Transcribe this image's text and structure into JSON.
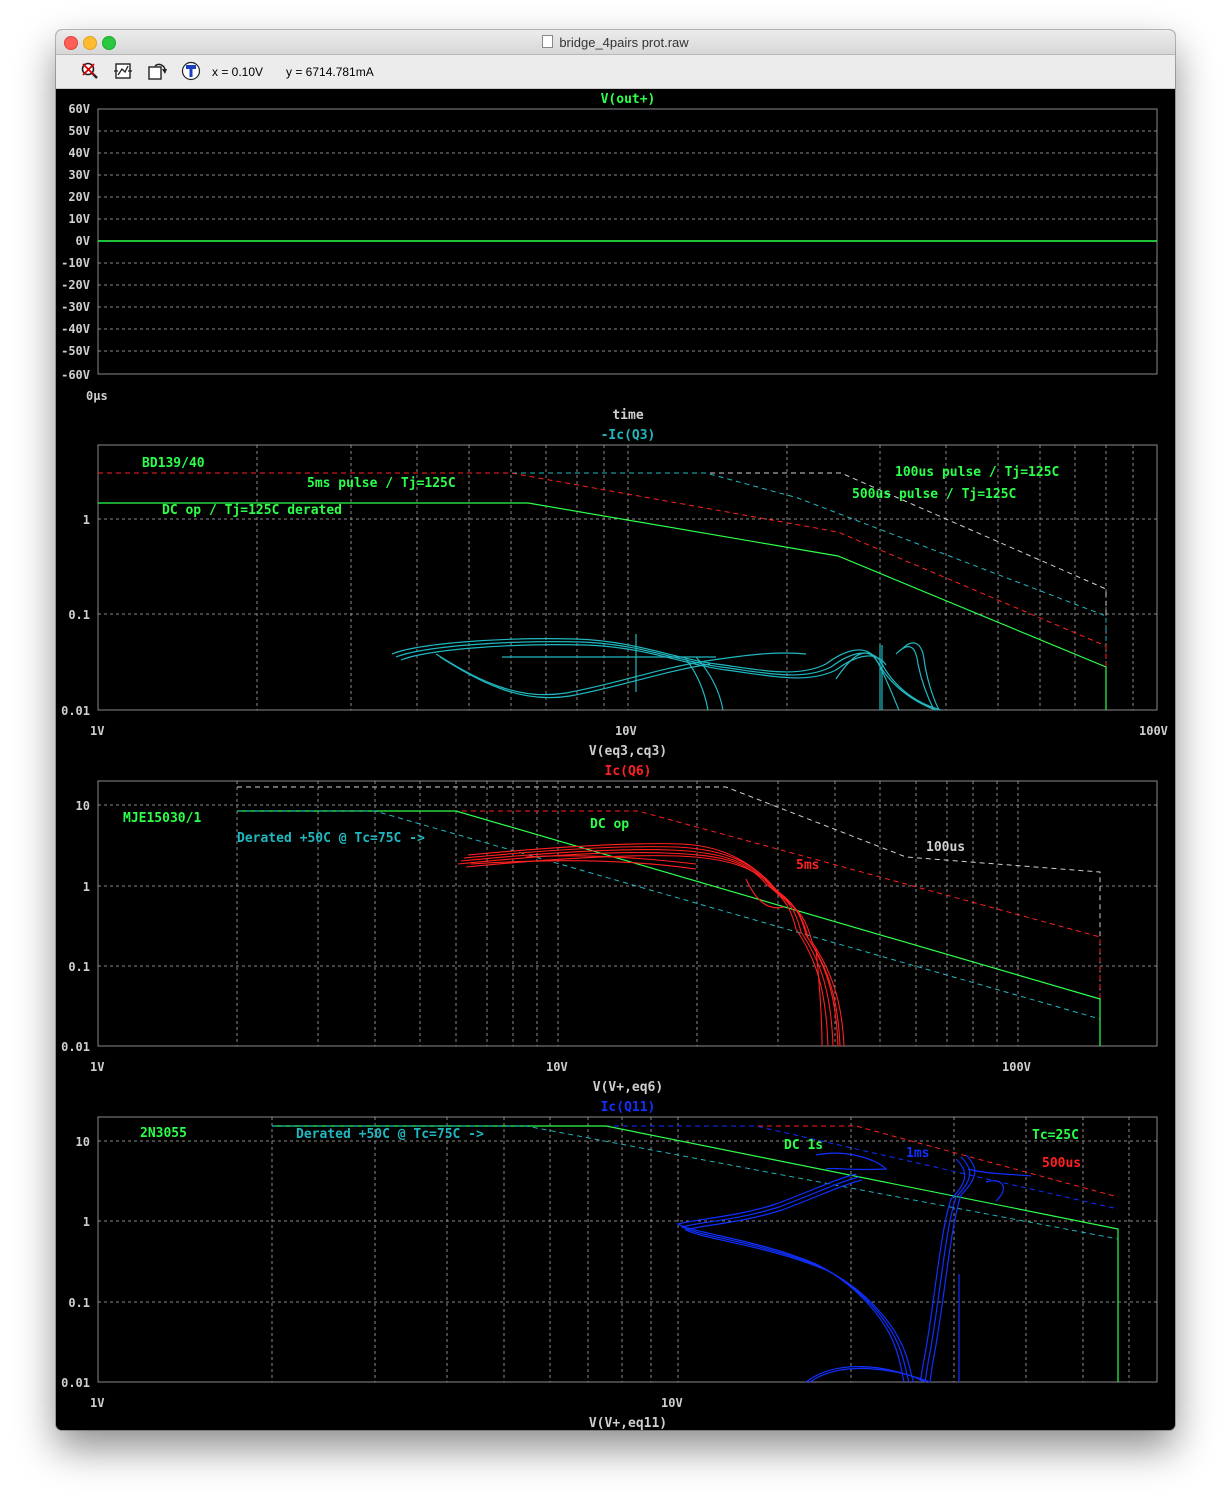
{
  "window": {
    "title": "bridge_4pairs prot.raw"
  },
  "toolbar": {
    "icons": [
      "zoom-cancel-icon",
      "autorange-icon",
      "undo-zoom-icon",
      "probe-icon"
    ],
    "x_readout": "x = 0.10V",
    "y_readout": "y = 6714.781mA"
  },
  "colors": {
    "green": "#2cff4a",
    "cyan": "#20b8c0",
    "red": "#ff2020",
    "blue": "#1030ff",
    "white": "#d0d0d0"
  },
  "panels": [
    {
      "trace": "V(out+)",
      "trace_color": "#2cff4a",
      "y_ticks": [
        "60V",
        "50V",
        "40V",
        "30V",
        "20V",
        "10V",
        "0V",
        "-10V",
        "-20V",
        "-30V",
        "-40V",
        "-50V",
        "-60V"
      ],
      "x_tick": "0µs",
      "x_label": "time"
    },
    {
      "trace": "-Ic(Q3)",
      "trace_color": "#20b8c0",
      "y_ticks": [
        "1",
        "0.1",
        "0.01"
      ],
      "x_ticks": [
        "1V",
        "10V",
        "100V"
      ],
      "x_label": "V(eq3,cq3)",
      "annotations": [
        "BD139/40",
        "5ms pulse / Tj=125C",
        "DC op / Tj=125C derated",
        "100us pulse / Tj=125C",
        "500us pulse / Tj=125C"
      ]
    },
    {
      "trace": "Ic(Q6)",
      "trace_color": "#ff2020",
      "y_ticks": [
        "10",
        "1",
        "0.1",
        "0.01"
      ],
      "x_ticks": [
        "1V",
        "10V",
        "100V"
      ],
      "x_label": "V(V+,eq6)",
      "annotations": [
        "MJE15030/1",
        "Derated +50C @ Tc=75C ->",
        "DC op",
        "5ms",
        "100us"
      ]
    },
    {
      "trace": "Ic(Q11)",
      "trace_color": "#1030ff",
      "y_ticks": [
        "10",
        "1",
        "0.1",
        "0.01"
      ],
      "x_ticks": [
        "1V",
        "10V"
      ],
      "x_label": "V(V+,eq11)",
      "annotations": [
        "2N3055",
        "Derated +50C @ Tc=75C ->",
        "DC 1s",
        "1ms",
        "Tc=25C",
        "500us"
      ]
    }
  ],
  "chart_data": [
    {
      "type": "line",
      "title": "V(out+)",
      "xlabel": "time",
      "ylabel": "",
      "ylim": [
        -60,
        60
      ],
      "series": [
        {
          "name": "V(out+)",
          "x": [
            0,
            1
          ],
          "values": [
            0,
            0
          ]
        }
      ]
    },
    {
      "type": "line",
      "title": "-Ic(Q3)",
      "xlabel": "V(eq3,cq3)",
      "ylabel": "",
      "log_x": true,
      "log_y": true,
      "xlim": [
        1,
        100
      ],
      "ylim": [
        0.01,
        3
      ],
      "series": [
        {
          "name": "DC op / Tj=125C derated",
          "x": [
            1,
            6,
            24,
            80,
            80
          ],
          "values": [
            1.5,
            1.5,
            0.4,
            0.026,
            0.01
          ]
        },
        {
          "name": "5ms pulse / Tj=125C",
          "x": [
            1,
            6,
            24,
            80
          ],
          "values": [
            3,
            3,
            0.7,
            0.05
          ]
        },
        {
          "name": "500us pulse / Tj=125C",
          "x": [
            1,
            14,
            30,
            80
          ],
          "values": [
            3,
            3,
            1,
            0.1
          ]
        },
        {
          "name": "100us pulse / Tj=125C",
          "x": [
            1,
            24,
            80
          ],
          "values": [
            3,
            3,
            0.2
          ]
        },
        {
          "name": "-Ic(Q3)",
          "x": [
            3.6,
            5,
            7,
            10,
            14,
            22,
            26,
            28,
            30,
            32,
            34,
            38
          ],
          "values": [
            0.04,
            0.05,
            0.055,
            0.045,
            0.035,
            0.035,
            0.02,
            0.04,
            0.025,
            0.03,
            0.035,
            0.01
          ]
        }
      ]
    },
    {
      "type": "line",
      "title": "Ic(Q6)",
      "xlabel": "V(V+,eq6)",
      "ylabel": "",
      "log_x": true,
      "log_y": true,
      "xlim": [
        1,
        150
      ],
      "ylim": [
        0.01,
        20
      ],
      "series": [
        {
          "name": "DC op",
          "x": [
            2,
            6,
            15,
            140,
            140
          ],
          "values": [
            8,
            8,
            2.5,
            0.035,
            0.01
          ]
        },
        {
          "name": "Derated +50C @ Tc=75C ->",
          "x": [
            2,
            4,
            15,
            140
          ],
          "values": [
            8,
            8,
            1.5,
            0.02
          ]
        },
        {
          "name": "5ms",
          "x": [
            2,
            15,
            140,
            140
          ],
          "values": [
            8,
            8,
            0.2,
            0.01
          ]
        },
        {
          "name": "100us",
          "x": [
            2,
            25,
            60,
            140,
            140
          ],
          "values": [
            16,
            16,
            3,
            1.5,
            0.01
          ]
        },
        {
          "name": "Ic(Q6)",
          "x": [
            6,
            10,
            15,
            20,
            25,
            28,
            30,
            33,
            35,
            36
          ],
          "values": [
            1.8,
            2.2,
            2.5,
            2.2,
            1,
            0.5,
            0.3,
            0.1,
            0.03,
            0.01
          ]
        }
      ]
    },
    {
      "type": "line",
      "title": "Ic(Q11)",
      "xlabel": "V(V+,eq11)",
      "ylabel": "",
      "log_x": true,
      "log_y": true,
      "xlim": [
        1,
        40
      ],
      "ylim": [
        0.01,
        20
      ],
      "series": [
        {
          "name": "DC 1s",
          "x": [
            2,
            7,
            34,
            34
          ],
          "values": [
            15,
            15,
            0.8,
            0.01
          ]
        },
        {
          "name": "Derated +50C @ Tc=75C ->",
          "x": [
            2,
            5,
            34
          ],
          "values": [
            15,
            15,
            0.5
          ]
        },
        {
          "name": "1ms",
          "x": [
            2,
            12,
            34
          ],
          "values": [
            15,
            15,
            1.2
          ]
        },
        {
          "name": "500us",
          "x": [
            2,
            18,
            34
          ],
          "values": [
            15,
            15,
            2
          ]
        },
        {
          "name": "Ic(Q11)",
          "x": [
            20,
            16,
            13,
            10,
            11,
            15,
            18,
            22,
            24,
            25,
            26
          ],
          "values": [
            3.5,
            3,
            2,
            0.9,
            0.8,
            0.5,
            0.2,
            0.02,
            0.01,
            0.3,
            5
          ]
        }
      ]
    }
  ]
}
